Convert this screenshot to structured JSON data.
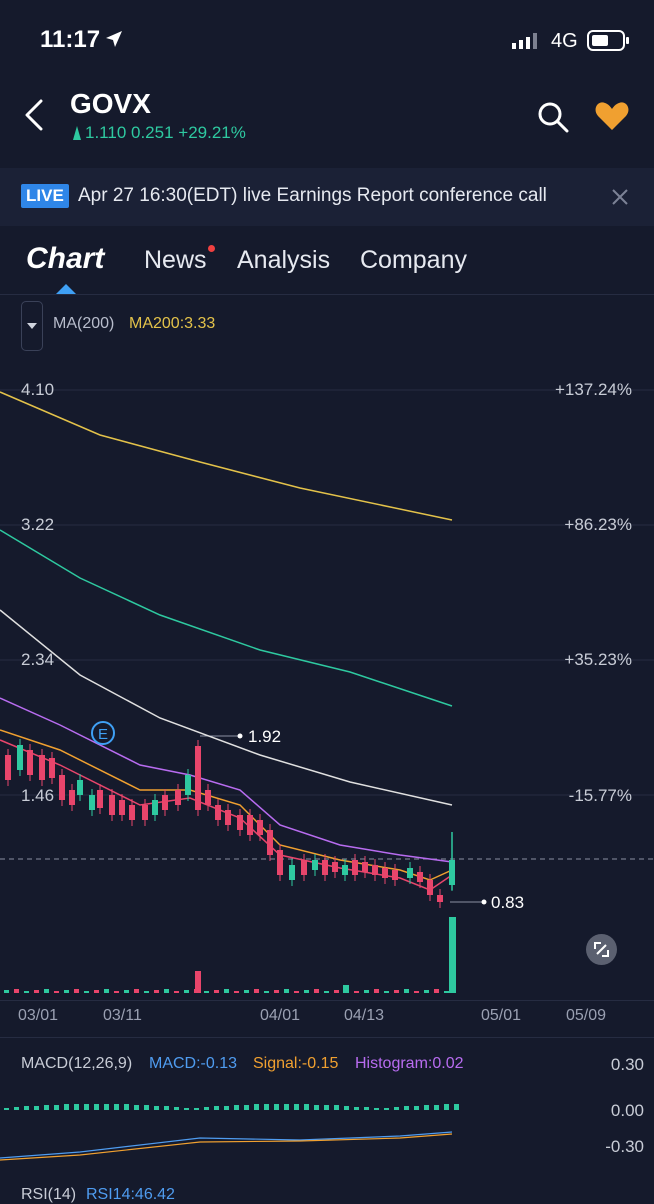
{
  "status": {
    "time": "11:17",
    "network": "4G"
  },
  "header": {
    "ticker": "GOVX",
    "quote": "1.110 0.251 +29.21%"
  },
  "live_banner": {
    "badge": "LIVE",
    "text": "Apr 27 16:30(EDT) live Earnings  Report conference call"
  },
  "tabs": [
    {
      "label": "Chart",
      "active": true
    },
    {
      "label": "News",
      "has_dot": true
    },
    {
      "label": "Analysis"
    },
    {
      "label": "Company"
    }
  ],
  "indicator": {
    "name": "MA(200)",
    "value": "MA200:3.33"
  },
  "price_axis": {
    "left": [
      "4.10",
      "3.22",
      "2.34",
      "1.46"
    ],
    "right": [
      "+137.24%",
      "+86.23%",
      "+35.23%",
      "-15.77%"
    ]
  },
  "annotations": {
    "high": "1.92",
    "low": "0.83",
    "earnings_marker": "E"
  },
  "x_axis": [
    "03/01",
    "03/11",
    "04/01",
    "04/13",
    "05/01",
    "05/09"
  ],
  "macd": {
    "title": "MACD(12,26,9)",
    "macd": "MACD:-0.13",
    "signal": "Signal:-0.15",
    "histogram": "Histogram:0.02",
    "axis": [
      "0.30",
      "0.00",
      "-0.30"
    ]
  },
  "rsi": {
    "title": "RSI(14)",
    "value": "RSI14:46.42"
  },
  "colors": {
    "background": "#151a2c",
    "up": "#2ec9a0",
    "down": "#e8456b",
    "ma200": "#e3c24a",
    "macd": "#4f9cf0",
    "signal": "#f0a030",
    "histogram": "#b86cf0"
  },
  "chart_data": {
    "type": "candlestick",
    "ylim": [
      0.7,
      4.3
    ],
    "last_price": 1.11,
    "high_marker": 1.92,
    "low_marker": 0.83
  }
}
